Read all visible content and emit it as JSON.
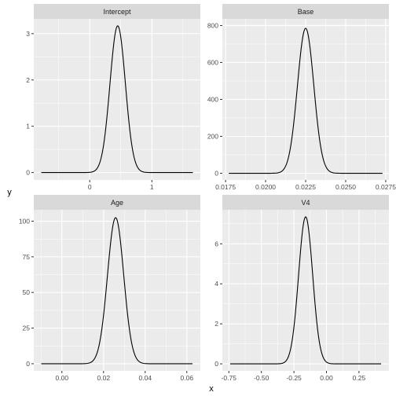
{
  "chart_data": {
    "type": "line",
    "xlabel": "x",
    "ylabel": "y",
    "grid": true,
    "colors": {
      "panel_bg": "#ebebeb",
      "strip_bg": "#d9d9d9",
      "grid_major": "#ffffff",
      "line": "#000000",
      "tick_text": "#4d4d4d"
    },
    "panels": [
      {
        "title": "Intercept",
        "xlim": [
          -0.9,
          1.78
        ],
        "ylim": [
          -0.16,
          3.32
        ],
        "xticks": [
          0,
          1
        ],
        "xtick_labels": [
          "0",
          "1"
        ],
        "yticks": [
          0,
          1,
          2,
          3
        ],
        "ytick_labels": [
          "0",
          "1",
          "2",
          "3"
        ],
        "x_start": -0.78,
        "x_end": 1.66,
        "mean": 0.45,
        "sd": 0.124,
        "peak": 3.17
      },
      {
        "title": "Base",
        "xlim": [
          0.0173,
          0.0277
        ],
        "ylim": [
          -36,
          836
        ],
        "xticks": [
          0.0175,
          0.02,
          0.0225,
          0.025,
          0.0275
        ],
        "xtick_labels": [
          "0.0175",
          "0.0200",
          "0.0225",
          "0.0250",
          "0.0275"
        ],
        "yticks": [
          0,
          200,
          400,
          600,
          800
        ],
        "ytick_labels": [
          "0",
          "200",
          "400",
          "600",
          "800"
        ],
        "x_start": 0.0177,
        "x_end": 0.0273,
        "mean": 0.0225,
        "sd": 0.00051,
        "peak": 785
      },
      {
        "title": "Age",
        "xlim": [
          -0.0135,
          0.0665
        ],
        "ylim": [
          -5,
          108
        ],
        "xticks": [
          0,
          0.02,
          0.04,
          0.06
        ],
        "xtick_labels": [
          "0.00",
          "0.02",
          "0.04",
          "0.06"
        ],
        "yticks": [
          0,
          25,
          50,
          75,
          100
        ],
        "ytick_labels": [
          "0",
          "25",
          "50",
          "75",
          "100"
        ],
        "x_start": -0.0099,
        "x_end": 0.0627,
        "mean": 0.0258,
        "sd": 0.0039,
        "peak": 102.5
      },
      {
        "title": "V4",
        "xlim": [
          -0.8,
          0.48
        ],
        "ylim": [
          -0.35,
          7.7
        ],
        "xticks": [
          -0.75,
          -0.5,
          -0.25,
          0,
          0.25
        ],
        "xtick_labels": [
          "-0.75",
          "-0.50",
          "-0.25",
          "0.00",
          "0.25"
        ],
        "yticks": [
          0,
          2,
          4,
          6
        ],
        "ytick_labels": [
          "0",
          "2",
          "4",
          "6"
        ],
        "x_start": -0.74,
        "x_end": 0.42,
        "mean": -0.16,
        "sd": 0.054,
        "peak": 7.35
      }
    ]
  }
}
